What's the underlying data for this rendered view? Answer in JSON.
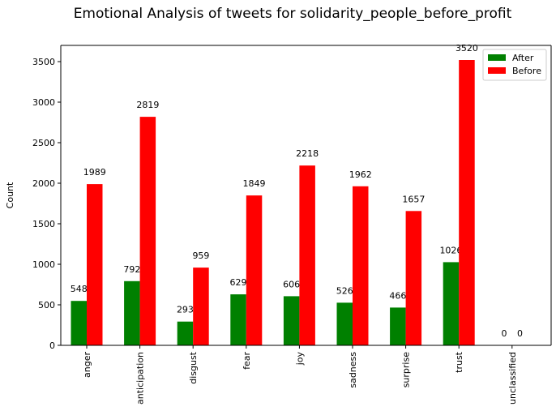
{
  "chart_data": {
    "type": "bar",
    "title": "Emotional Analysis of tweets for solidarity_people_before_profit",
    "xlabel": "",
    "ylabel": "Count",
    "ylim": [
      0,
      3700
    ],
    "yticks": [
      0,
      500,
      1000,
      1500,
      2000,
      2500,
      3000,
      3500
    ],
    "categories": [
      "anger",
      "anticipation",
      "disgust",
      "fear",
      "joy",
      "sadness",
      "surprise",
      "trust",
      "unclassified"
    ],
    "series": [
      {
        "name": "After",
        "color": "#008000",
        "values": [
          548,
          792,
          293,
          629,
          606,
          526,
          466,
          1026,
          0
        ]
      },
      {
        "name": "Before",
        "color": "#ff0000",
        "values": [
          1989,
          2819,
          959,
          1849,
          2218,
          1962,
          1657,
          3520,
          0
        ]
      }
    ],
    "legend": {
      "placement": "top-right"
    },
    "grid": false
  }
}
